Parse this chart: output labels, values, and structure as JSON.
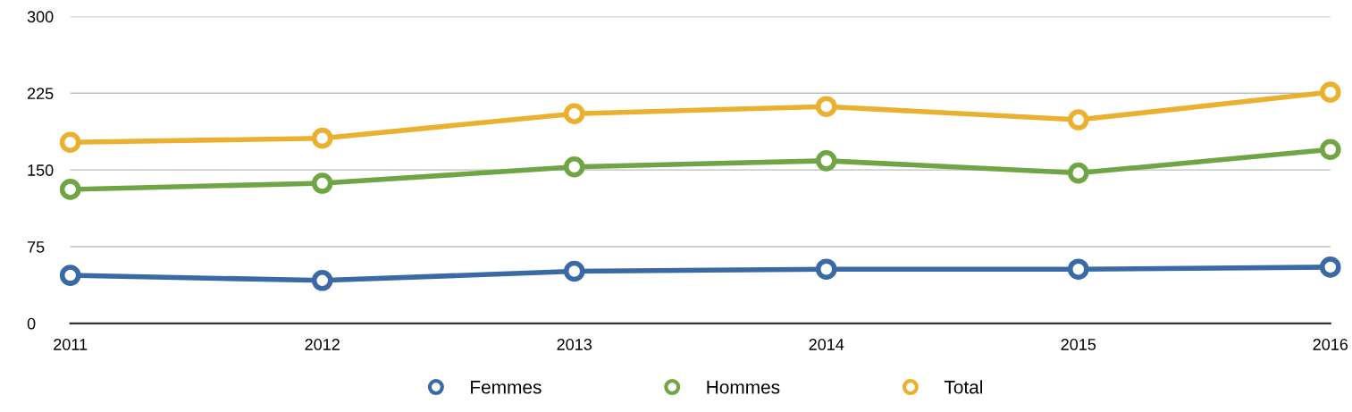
{
  "chart_data": {
    "type": "line",
    "categories": [
      "2011",
      "2012",
      "2013",
      "2014",
      "2015",
      "2016"
    ],
    "series": [
      {
        "name": "Femmes",
        "color": "#3a6aa5",
        "values": [
          47,
          42,
          51,
          53,
          53,
          55
        ]
      },
      {
        "name": "Hommes",
        "color": "#6fa544",
        "values": [
          131,
          137,
          153,
          159,
          147,
          170
        ]
      },
      {
        "name": "Total",
        "color": "#eab130",
        "values": [
          177,
          181,
          205,
          212,
          199,
          226
        ]
      }
    ],
    "ylim": [
      0,
      300
    ],
    "yticks": [
      0,
      75,
      150,
      225,
      300
    ],
    "grid": "y",
    "legend": "bottom",
    "marker": "circle",
    "line_style": "solid"
  }
}
